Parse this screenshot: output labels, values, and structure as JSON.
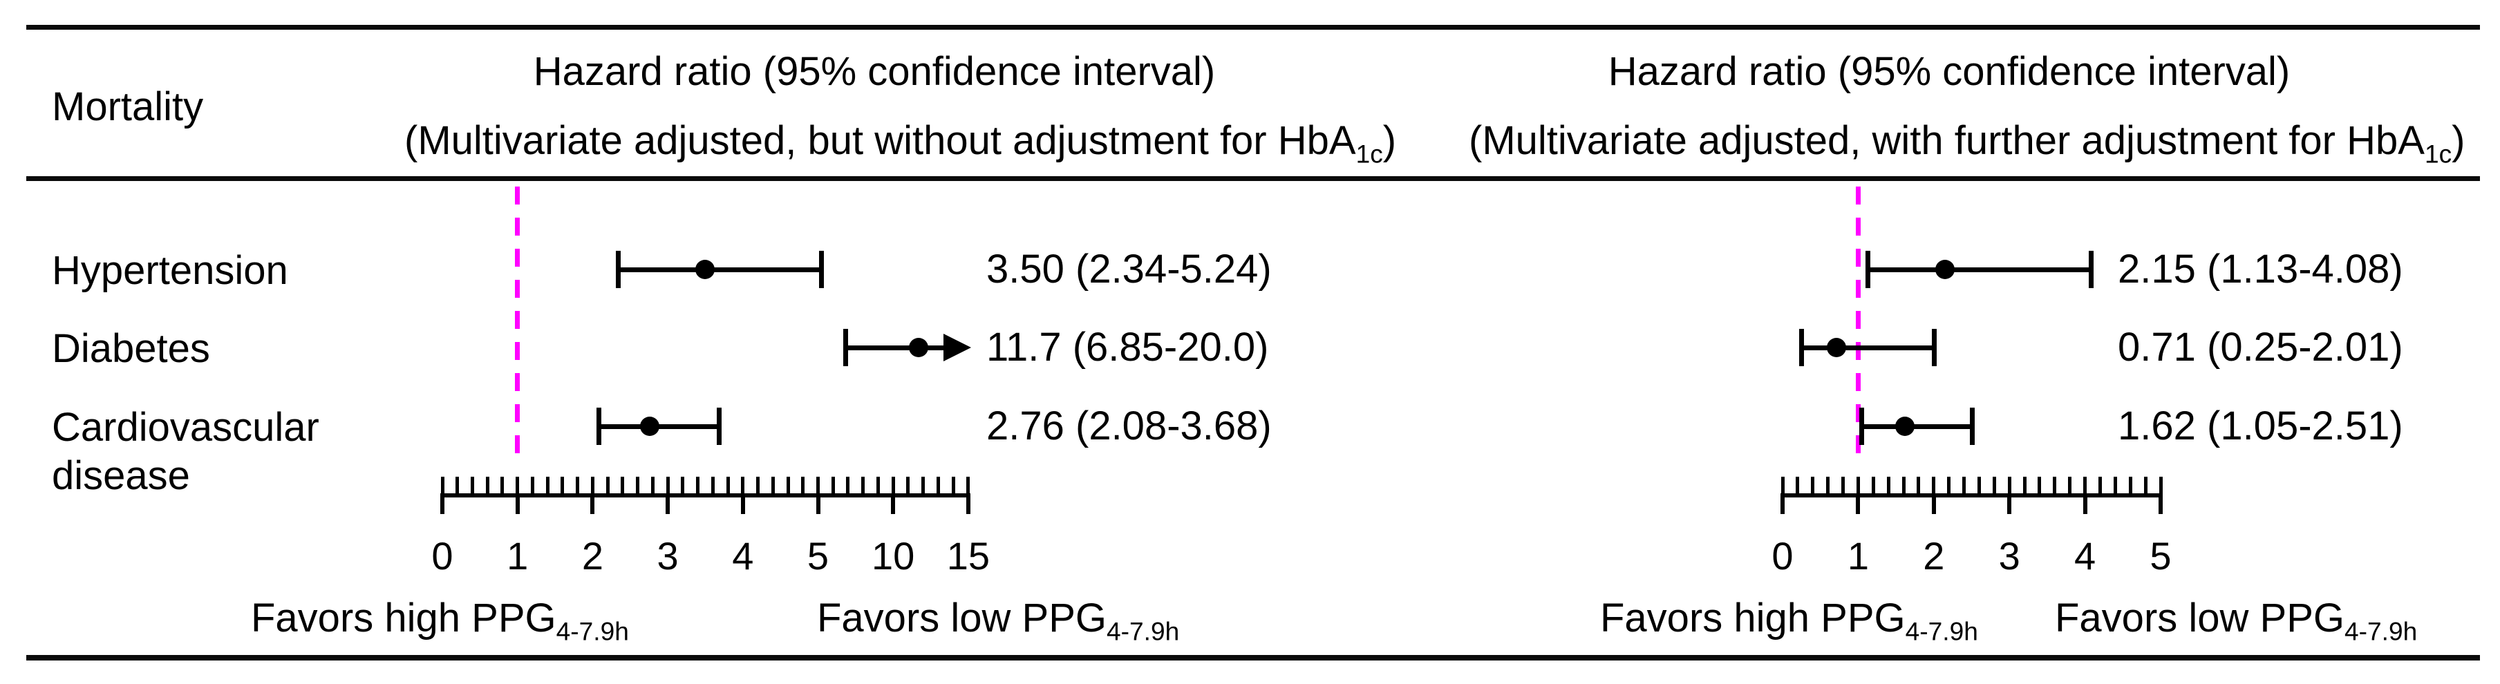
{
  "row_header": "Mortality",
  "panels": [
    {
      "header1": "Hazard ratio (95% confidence interval)",
      "header2_pre": "(Multivariate adjusted, but without adjustment for HbA",
      "header2_sub": "1c",
      "header2_post": ")",
      "favors_high_pre": "Favors high PPG",
      "favors_high_sub": "4-7.9h",
      "favors_low_pre": "Favors low PPG",
      "favors_low_sub": "4-7.9h"
    },
    {
      "header1": "Hazard ratio (95% confidence interval)",
      "header2_pre": "(Multivariate adjusted, with further adjustment for HbA",
      "header2_sub": "1c",
      "header2_post": ")",
      "favors_high_pre": "Favors high PPG",
      "favors_high_sub": "4-7.9h",
      "favors_low_pre": "Favors low PPG",
      "favors_low_sub": "4-7.9h"
    }
  ],
  "chart_data": [
    {
      "type": "scatter",
      "variant": "forest-plot",
      "title": "Hazard ratio (95% confidence interval), multivariate adjusted, but without adjustment for HbA1c",
      "categories": [
        "Hypertension",
        "Diabetes",
        "Cardiovascular disease"
      ],
      "series": [
        {
          "name": "Hazard ratio",
          "values": [
            3.5,
            11.7,
            2.76
          ],
          "ci_low": [
            2.34,
            6.85,
            2.08
          ],
          "ci_high": [
            5.24,
            20.0,
            3.68
          ]
        }
      ],
      "labels": [
        "3.50 (2.34-5.24)",
        "11.7 (6.85-20.0)",
        "2.76 (2.08-3.68)"
      ],
      "clipped_high": [
        false,
        true,
        false
      ],
      "axis": {
        "ticks": [
          0,
          1,
          2,
          3,
          4,
          5,
          10,
          15
        ],
        "minor_per_major": 5,
        "reference_line": 1,
        "scale_note": "equal spacing per labeled tick: linear 0-5, compressed 5-10-15",
        "grid": false
      },
      "reference_line_color": "#ff00ff",
      "annotation_low": "Favors high PPG4-7.9h",
      "annotation_high": "Favors low PPG4-7.9h"
    },
    {
      "type": "scatter",
      "variant": "forest-plot",
      "title": "Hazard ratio (95% confidence interval), multivariate adjusted, with further adjustment for HbA1c",
      "categories": [
        "Hypertension",
        "Diabetes",
        "Cardiovascular disease"
      ],
      "series": [
        {
          "name": "Hazard ratio",
          "values": [
            2.15,
            0.71,
            1.62
          ],
          "ci_low": [
            1.13,
            0.25,
            1.05
          ],
          "ci_high": [
            4.08,
            2.01,
            2.51
          ]
        }
      ],
      "labels": [
        "2.15 (1.13-4.08)",
        "0.71 (0.25-2.01)",
        "1.62 (1.05-2.51)"
      ],
      "clipped_high": [
        false,
        false,
        false
      ],
      "axis": {
        "ticks": [
          0,
          1,
          2,
          3,
          4,
          5
        ],
        "minor_per_major": 5,
        "reference_line": 1,
        "scale_note": "linear 0-5",
        "grid": false
      },
      "reference_line_color": "#ff00ff",
      "annotation_low": "Favors high PPG4-7.9h",
      "annotation_high": "Favors low PPG4-7.9h"
    }
  ]
}
